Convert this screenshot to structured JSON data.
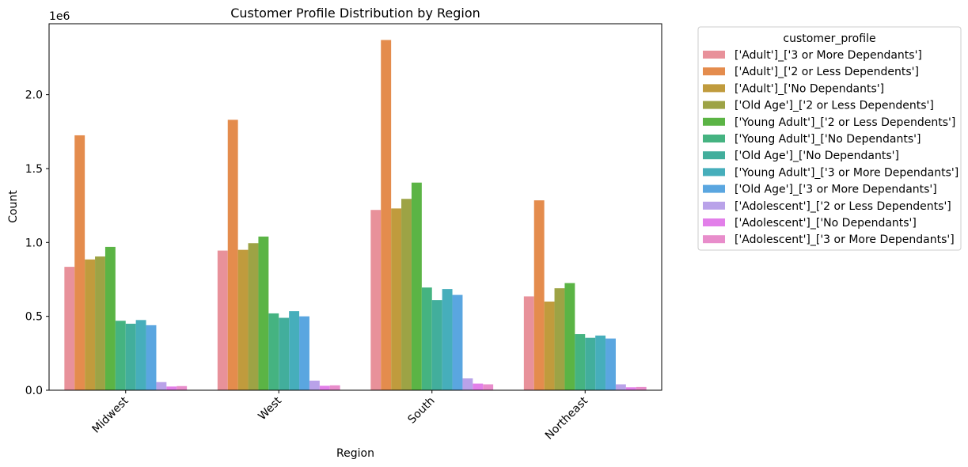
{
  "chart_data": {
    "type": "bar",
    "title": "Customer Profile Distribution by Region",
    "xlabel": "Region",
    "ylabel": "Count",
    "y_offset_label": "1e6",
    "ylim": [
      0,
      2.48
    ],
    "yticks": [
      0.0,
      0.5,
      1.0,
      1.5,
      2.0
    ],
    "ytick_labels": [
      "0.0",
      "0.5",
      "1.0",
      "1.5",
      "2.0"
    ],
    "grid": false,
    "legend_title": "customer_profile",
    "legend_position": "outside-upper-right",
    "categories": [
      "Midwest",
      "West",
      "South",
      "Northeast"
    ],
    "series": [
      {
        "name": "['Adult']_['3 or More Dependants']",
        "color": "#e8919a",
        "values": [
          0.835,
          0.945,
          1.22,
          0.635
        ]
      },
      {
        "name": "['Adult']_['2 or Less Dependents']",
        "color": "#e48c4d",
        "values": [
          1.725,
          1.83,
          2.37,
          1.285
        ]
      },
      {
        "name": "['Adult']_['No Dependants']",
        "color": "#c09b3d",
        "values": [
          0.885,
          0.95,
          1.23,
          0.6
        ]
      },
      {
        "name": "['Old Age']_['2 or Less Dependents']",
        "color": "#9da345",
        "values": [
          0.905,
          0.995,
          1.295,
          0.69
        ]
      },
      {
        "name": "['Young Adult']_['2 or Less Dependents']",
        "color": "#5bb445",
        "values": [
          0.97,
          1.04,
          1.405,
          0.725
        ]
      },
      {
        "name": "['Young Adult']_['No Dependants']",
        "color": "#45b381",
        "values": [
          0.47,
          0.52,
          0.695,
          0.38
        ]
      },
      {
        "name": "['Old Age']_['No Dependants']",
        "color": "#42ae9c",
        "values": [
          0.45,
          0.49,
          0.61,
          0.355
        ]
      },
      {
        "name": "['Young Adult']_['3 or More Dependants']",
        "color": "#46aebb",
        "values": [
          0.475,
          0.535,
          0.685,
          0.37
        ]
      },
      {
        "name": "['Old Age']_['3 or More Dependants']",
        "color": "#5aa6e0",
        "values": [
          0.44,
          0.5,
          0.645,
          0.35
        ]
      },
      {
        "name": "['Adolescent']_['2 or Less Dependents']",
        "color": "#b9a2e9",
        "values": [
          0.055,
          0.065,
          0.08,
          0.04
        ]
      },
      {
        "name": "['Adolescent']_['No Dependants']",
        "color": "#e27fe9",
        "values": [
          0.025,
          0.03,
          0.045,
          0.02
        ]
      },
      {
        "name": "['Adolescent']_['3 or More Dependants']",
        "color": "#e88dcb",
        "values": [
          0.028,
          0.033,
          0.04,
          0.022
        ]
      }
    ]
  }
}
